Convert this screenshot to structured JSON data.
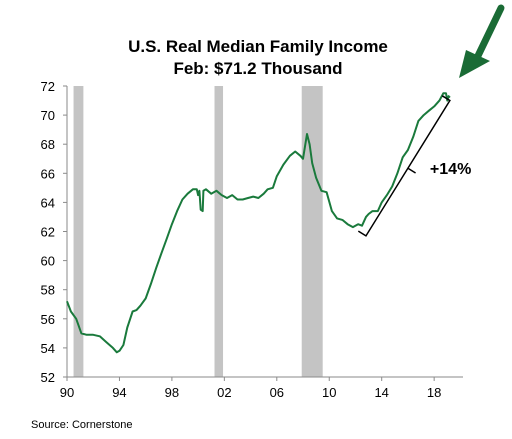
{
  "chart_data": {
    "type": "line",
    "title": "U.S. Real Median Family Income",
    "subtitle": "Feb: $71.2 Thousand",
    "xlabel": "",
    "ylabel": "",
    "source": "Source: Cornerstone",
    "xlim": [
      1990,
      2020.2
    ],
    "ylim": [
      52,
      72
    ],
    "grid": false,
    "x_ticks": [
      1990,
      1994,
      1998,
      2002,
      2006,
      2010,
      2014,
      2018
    ],
    "x_tick_labels": [
      "90",
      "94",
      "98",
      "02",
      "06",
      "10",
      "14",
      "18"
    ],
    "y_ticks": [
      52,
      54,
      56,
      58,
      60,
      62,
      64,
      66,
      68,
      70,
      72
    ],
    "y_tick_labels": [
      "52",
      "54",
      "56",
      "58",
      "60",
      "62",
      "64",
      "66",
      "68",
      "70",
      "72"
    ],
    "recessions": [
      [
        1990.5,
        1991.25
      ],
      [
        2001.25,
        2001.9
      ],
      [
        2007.9,
        2009.5
      ]
    ],
    "annotation": {
      "text": "+14%",
      "from": [
        2012.8,
        61.7
      ],
      "to": [
        2019.2,
        71.0
      ]
    },
    "series": [
      {
        "color": "#1a7a3c",
        "x": [
          1990.0,
          1990.3,
          1990.7,
          1991.1,
          1991.5,
          1992.0,
          1992.5,
          1993.0,
          1993.5,
          1993.8,
          1994.0,
          1994.3,
          1994.6,
          1995.0,
          1995.3,
          1995.6,
          1996.0,
          1996.4,
          1996.8,
          1997.2,
          1997.6,
          1998.0,
          1998.4,
          1998.8,
          1999.2,
          1999.6,
          1999.9,
          2000.0,
          2000.1,
          2000.2,
          2000.35,
          2000.4,
          2000.6,
          2001.0,
          2001.4,
          2001.8,
          2002.2,
          2002.6,
          2003.0,
          2003.4,
          2003.8,
          2004.2,
          2004.6,
          2005.0,
          2005.3,
          2005.7,
          2006.0,
          2006.5,
          2007.0,
          2007.4,
          2007.8,
          2008.0,
          2008.3,
          2008.5,
          2008.7,
          2009.0,
          2009.4,
          2009.8,
          2010.2,
          2010.6,
          2011.0,
          2011.4,
          2011.8,
          2012.2,
          2012.5,
          2012.8,
          2013.0,
          2013.3,
          2013.7,
          2014.0,
          2014.4,
          2014.8,
          2015.2,
          2015.6,
          2016.0,
          2016.4,
          2016.8,
          2017.2,
          2017.6,
          2018.0,
          2018.4,
          2018.7,
          2018.9,
          2019.0,
          2019.1,
          2019.2
        ],
        "y": [
          57.2,
          56.5,
          56.0,
          55.0,
          54.9,
          54.9,
          54.8,
          54.4,
          54.0,
          53.7,
          53.8,
          54.2,
          55.4,
          56.5,
          56.6,
          56.9,
          57.4,
          58.4,
          59.5,
          60.5,
          61.5,
          62.5,
          63.4,
          64.2,
          64.6,
          64.9,
          64.9,
          64.5,
          64.8,
          63.5,
          63.4,
          64.8,
          64.9,
          64.6,
          64.8,
          64.5,
          64.3,
          64.5,
          64.2,
          64.2,
          64.3,
          64.4,
          64.3,
          64.6,
          64.9,
          65.0,
          65.8,
          66.6,
          67.2,
          67.5,
          67.2,
          67.0,
          68.7,
          68.0,
          66.7,
          65.7,
          64.8,
          64.7,
          63.4,
          62.9,
          62.8,
          62.5,
          62.3,
          62.5,
          62.4,
          63.0,
          63.2,
          63.4,
          63.4,
          64.0,
          64.5,
          65.1,
          66.0,
          67.1,
          67.6,
          68.5,
          69.6,
          70.0,
          70.3,
          70.6,
          71.0,
          71.5,
          71.5,
          71.0,
          71.3,
          71.2
        ]
      }
    ]
  }
}
